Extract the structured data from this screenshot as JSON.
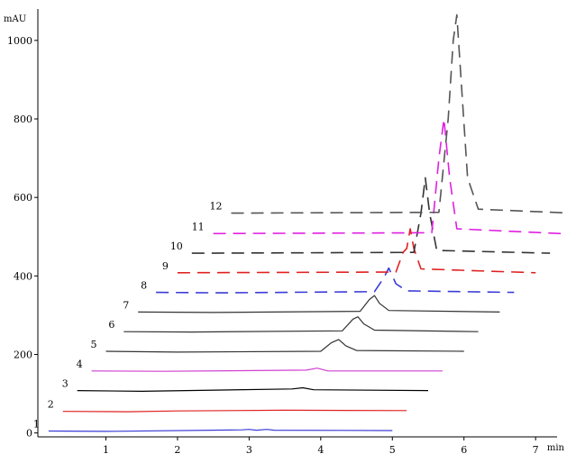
{
  "chart_data": {
    "type": "line",
    "title": "",
    "xlabel": "",
    "ylabel": "",
    "x_unit": "min",
    "y_unit": "mAU",
    "xlim": [
      0.05,
      7.3
    ],
    "ylim": [
      -10,
      1080
    ],
    "x_ticks": [
      1,
      2,
      3,
      4,
      5,
      6,
      7
    ],
    "y_ticks": [
      0,
      200,
      400,
      600,
      800,
      1000
    ],
    "grid": false,
    "legend": "none",
    "offset_per_trace": {
      "x": 0.22,
      "y": 50
    },
    "series": [
      {
        "label": "1",
        "color": "#3b3bd6",
        "dash": "solid",
        "x_start": 0.2,
        "x_end": 5.0,
        "points": [
          [
            0.2,
            5
          ],
          [
            1.0,
            4
          ],
          [
            2.9,
            8
          ],
          [
            3.0,
            9
          ],
          [
            3.1,
            7
          ],
          [
            3.25,
            9
          ],
          [
            3.35,
            7
          ],
          [
            5.0,
            6
          ]
        ]
      },
      {
        "label": "2",
        "color": "#e02020",
        "dash": "solid",
        "x_start": 0.4,
        "x_end": 5.2,
        "points": [
          [
            0.4,
            55
          ],
          [
            1.3,
            54
          ],
          [
            2.0,
            56
          ],
          [
            3.5,
            58
          ],
          [
            5.2,
            57
          ]
        ]
      },
      {
        "label": "3",
        "color": "#000000",
        "dash": "solid",
        "x_start": 0.6,
        "x_end": 5.5,
        "points": [
          [
            0.6,
            108
          ],
          [
            1.5,
            106
          ],
          [
            3.6,
            112
          ],
          [
            3.75,
            115
          ],
          [
            3.9,
            110
          ],
          [
            5.5,
            108
          ]
        ]
      },
      {
        "label": "4",
        "color": "#d040d0",
        "dash": "solid",
        "x_start": 0.8,
        "x_end": 5.7,
        "points": [
          [
            0.8,
            158
          ],
          [
            1.8,
            157
          ],
          [
            3.8,
            160
          ],
          [
            3.95,
            165
          ],
          [
            4.1,
            158
          ],
          [
            5.7,
            158
          ]
        ]
      },
      {
        "label": "5",
        "color": "#333333",
        "dash": "solid",
        "x_start": 1.0,
        "x_end": 6.0,
        "points": [
          [
            1.0,
            208
          ],
          [
            2.0,
            206
          ],
          [
            4.0,
            208
          ],
          [
            4.15,
            230
          ],
          [
            4.25,
            238
          ],
          [
            4.35,
            222
          ],
          [
            4.5,
            210
          ],
          [
            6.0,
            208
          ]
        ]
      },
      {
        "label": "6",
        "color": "#333333",
        "dash": "solid",
        "x_start": 1.25,
        "x_end": 6.2,
        "points": [
          [
            1.25,
            258
          ],
          [
            2.2,
            257
          ],
          [
            4.3,
            260
          ],
          [
            4.45,
            290
          ],
          [
            4.52,
            296
          ],
          [
            4.6,
            278
          ],
          [
            4.75,
            262
          ],
          [
            6.2,
            258
          ]
        ]
      },
      {
        "label": "7",
        "color": "#333333",
        "dash": "solid",
        "x_start": 1.45,
        "x_end": 6.5,
        "points": [
          [
            1.45,
            308
          ],
          [
            2.5,
            307
          ],
          [
            4.55,
            310
          ],
          [
            4.68,
            340
          ],
          [
            4.75,
            350
          ],
          [
            4.82,
            330
          ],
          [
            4.95,
            312
          ],
          [
            6.5,
            308
          ]
        ]
      },
      {
        "label": "8",
        "color": "#3b3bd6",
        "dash": "dashed",
        "x_start": 1.7,
        "x_end": 6.7,
        "points": [
          [
            1.7,
            358
          ],
          [
            2.6,
            357
          ],
          [
            4.75,
            360
          ],
          [
            4.88,
            395
          ],
          [
            4.95,
            420
          ],
          [
            5.05,
            380
          ],
          [
            5.2,
            362
          ],
          [
            6.7,
            358
          ]
        ]
      },
      {
        "label": "9",
        "color": "#e02020",
        "dash": "dashed",
        "x_start": 2.0,
        "x_end": 7.0,
        "points": [
          [
            2.0,
            408
          ],
          [
            5.05,
            410
          ],
          [
            5.15,
            460
          ],
          [
            5.2,
            470
          ],
          [
            5.25,
            520
          ],
          [
            5.3,
            470
          ],
          [
            5.4,
            418
          ],
          [
            7.0,
            408
          ]
        ]
      },
      {
        "label": "10",
        "color": "#333333",
        "dash": "dashed",
        "x_start": 2.2,
        "x_end": 7.2,
        "points": [
          [
            2.2,
            458
          ],
          [
            5.3,
            460
          ],
          [
            5.4,
            560
          ],
          [
            5.46,
            650
          ],
          [
            5.52,
            560
          ],
          [
            5.62,
            465
          ],
          [
            7.2,
            458
          ]
        ]
      },
      {
        "label": "11",
        "color": "#e020e0",
        "dash": "dashed",
        "x_start": 2.5,
        "x_end": 7.35,
        "points": [
          [
            2.5,
            508
          ],
          [
            5.55,
            510
          ],
          [
            5.65,
            700
          ],
          [
            5.72,
            800
          ],
          [
            5.8,
            650
          ],
          [
            5.9,
            520
          ],
          [
            7.35,
            508
          ]
        ]
      },
      {
        "label": "12",
        "color": "#555555",
        "dash": "dashed",
        "x_start": 2.75,
        "x_end": 7.5,
        "points": [
          [
            2.75,
            560
          ],
          [
            5.65,
            562
          ],
          [
            5.78,
            800
          ],
          [
            5.85,
            1000
          ],
          [
            5.9,
            1065
          ],
          [
            5.96,
            900
          ],
          [
            6.05,
            650
          ],
          [
            6.2,
            570
          ],
          [
            7.5,
            560
          ]
        ]
      }
    ]
  }
}
